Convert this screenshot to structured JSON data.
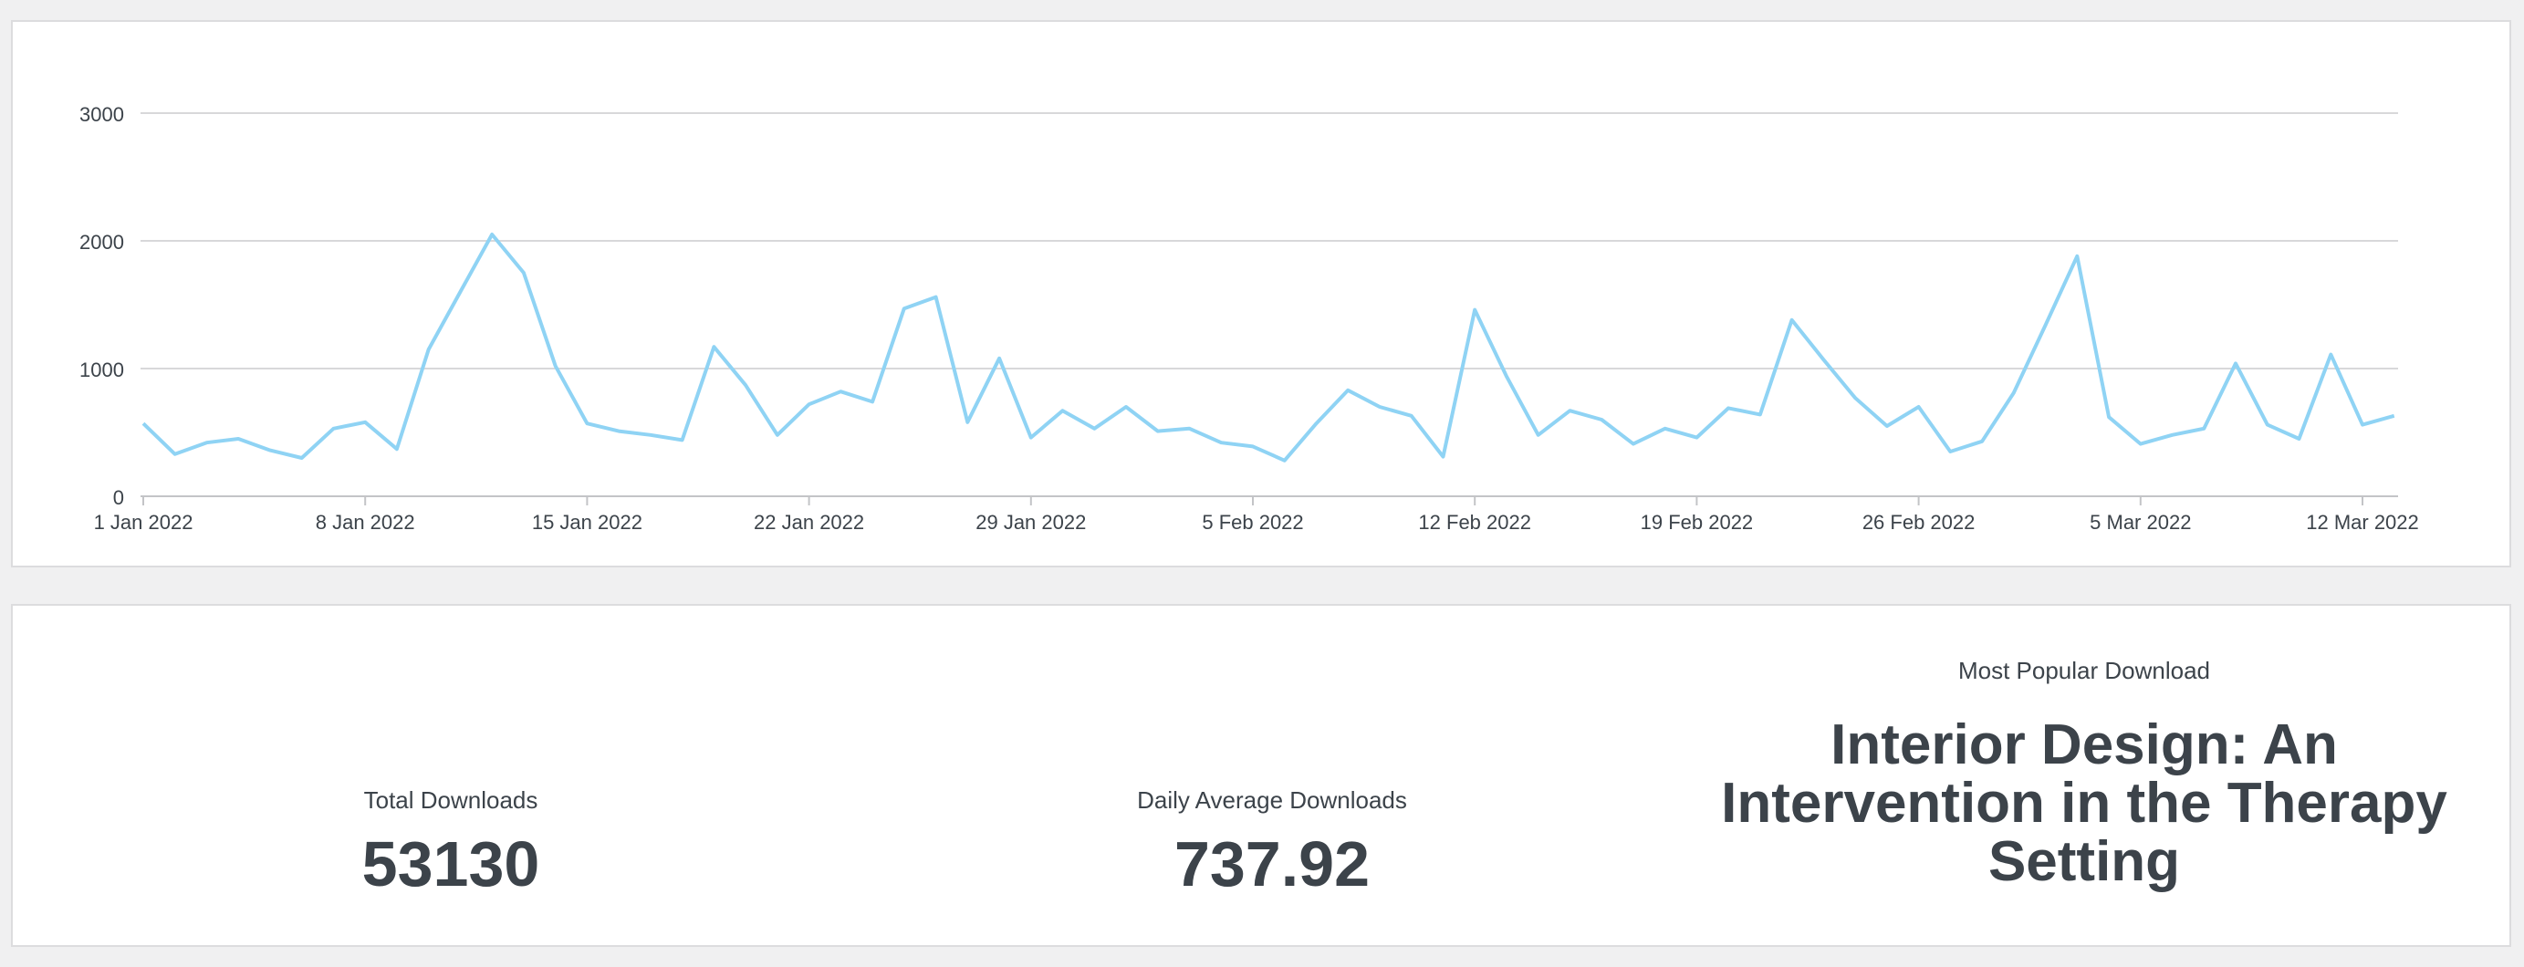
{
  "chart_data": {
    "type": "line",
    "title": "",
    "xlabel": "",
    "ylabel": "",
    "ylim": [
      0,
      3000
    ],
    "yticks": [
      "0",
      "1000",
      "2000",
      "3000"
    ],
    "xticks": [
      {
        "day": 0,
        "label": "1 Jan 2022"
      },
      {
        "day": 7,
        "label": "8 Jan 2022"
      },
      {
        "day": 14,
        "label": "15 Jan 2022"
      },
      {
        "day": 21,
        "label": "22 Jan 2022"
      },
      {
        "day": 28,
        "label": "29 Jan 2022"
      },
      {
        "day": 35,
        "label": "5 Feb 2022"
      },
      {
        "day": 42,
        "label": "12 Feb 2022"
      },
      {
        "day": 49,
        "label": "19 Feb 2022"
      },
      {
        "day": 56,
        "label": "26 Feb 2022"
      },
      {
        "day": 63,
        "label": "5 Mar 2022"
      },
      {
        "day": 70,
        "label": "12 Mar 2022"
      }
    ],
    "grid": true,
    "line_color": "#8fd3f4",
    "series": [
      {
        "values": [
          570,
          330,
          420,
          450,
          360,
          300,
          530,
          580,
          370,
          1150,
          1600,
          2050,
          1750,
          1020,
          570,
          510,
          480,
          440,
          1170,
          870,
          480,
          720,
          820,
          740,
          1470,
          1560,
          580,
          1080,
          460,
          670,
          530,
          700,
          510,
          530,
          420,
          390,
          280,
          570,
          830,
          700,
          630,
          310,
          1460,
          940,
          480,
          670,
          600,
          410,
          530,
          460,
          690,
          640,
          1380,
          1070,
          770,
          550,
          700,
          350,
          430,
          810,
          1340,
          1880,
          620,
          410,
          480,
          530,
          1040,
          560,
          450,
          1110,
          560,
          630
        ]
      }
    ]
  },
  "stats": {
    "total_label": "Total Downloads",
    "total_value": "53130",
    "avg_label": "Daily Average Downloads",
    "avg_value": "737.92",
    "popular_label": "Most Popular Download",
    "popular_value": "Interior Design: An Intervention in the Therapy Setting"
  }
}
